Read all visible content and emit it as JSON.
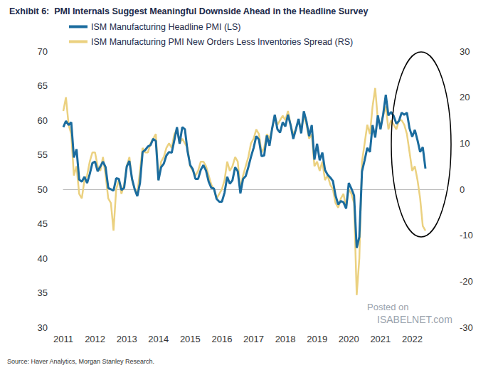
{
  "chart_data": {
    "type": "line",
    "title": "Exhibit 6:  PMI Internals Suggest Meaningful Downside Ahead in the Headline Survey",
    "source": "Source: Haver Analytics, Morgan Stanley Research.",
    "annotations": [
      "Posted on",
      "ISABELNET.com"
    ],
    "legend": "upper left",
    "grid": false,
    "xlim": [
      2011,
      2023
    ],
    "xticks": [
      2011,
      2012,
      2013,
      2014,
      2015,
      2016,
      2017,
      2018,
      2019,
      2020,
      2021,
      2022
    ],
    "ylim": [
      30,
      70
    ],
    "yticks": [
      30,
      35,
      40,
      45,
      50,
      55,
      60,
      65,
      70
    ],
    "y2lim": [
      -30,
      30
    ],
    "y2ticks": [
      -30,
      -20,
      -10,
      0,
      10,
      20,
      30
    ],
    "x": [
      2011,
      2011.083,
      2011.167,
      2011.25,
      2011.333,
      2011.417,
      2011.5,
      2011.583,
      2011.667,
      2011.75,
      2011.833,
      2011.917,
      2012,
      2012.083,
      2012.167,
      2012.25,
      2012.333,
      2012.417,
      2012.5,
      2012.583,
      2012.667,
      2012.75,
      2012.833,
      2012.917,
      2013,
      2013.083,
      2013.167,
      2013.25,
      2013.333,
      2013.417,
      2013.5,
      2013.583,
      2013.667,
      2013.75,
      2013.833,
      2013.917,
      2014,
      2014.083,
      2014.167,
      2014.25,
      2014.333,
      2014.417,
      2014.5,
      2014.583,
      2014.667,
      2014.75,
      2014.833,
      2014.917,
      2015,
      2015.083,
      2015.167,
      2015.25,
      2015.333,
      2015.417,
      2015.5,
      2015.583,
      2015.667,
      2015.75,
      2015.833,
      2015.917,
      2016,
      2016.083,
      2016.167,
      2016.25,
      2016.333,
      2016.417,
      2016.5,
      2016.583,
      2016.667,
      2016.75,
      2016.833,
      2016.917,
      2017,
      2017.083,
      2017.167,
      2017.25,
      2017.333,
      2017.417,
      2017.5,
      2017.583,
      2017.667,
      2017.75,
      2017.833,
      2017.917,
      2018,
      2018.083,
      2018.167,
      2018.25,
      2018.333,
      2018.417,
      2018.5,
      2018.583,
      2018.667,
      2018.75,
      2018.833,
      2018.917,
      2019,
      2019.083,
      2019.167,
      2019.25,
      2019.333,
      2019.417,
      2019.5,
      2019.583,
      2019.667,
      2019.75,
      2019.833,
      2019.917,
      2020,
      2020.083,
      2020.167,
      2020.25,
      2020.333,
      2020.417,
      2020.5,
      2020.583,
      2020.667,
      2020.75,
      2020.833,
      2020.917,
      2021,
      2021.083,
      2021.167,
      2021.25,
      2021.333,
      2021.417,
      2021.5,
      2021.583,
      2021.667,
      2021.75,
      2021.833,
      2021.917,
      2022,
      2022.083,
      2022.167,
      2022.25,
      2022.333,
      2022.417
    ],
    "series": [
      {
        "name": "ISM Manufacturing Headline PMI (LS)",
        "color": "#1b6c9e",
        "axis": "y",
        "values": [
          59.0,
          59.9,
          59.3,
          59.7,
          54.6,
          55.8,
          51.4,
          51.1,
          51.8,
          50.9,
          52.2,
          53.8,
          54.0,
          52.6,
          53.3,
          54.0,
          53.2,
          50.2,
          50.0,
          49.8,
          51.6,
          51.5,
          49.9,
          50.2,
          53.3,
          54.1,
          51.5,
          50.0,
          49.0,
          50.9,
          55.4,
          55.7,
          56.2,
          56.4,
          57.3,
          57.0,
          51.3,
          53.2,
          53.7,
          54.9,
          55.4,
          55.3,
          57.1,
          59.0,
          56.6,
          59.0,
          58.7,
          55.5,
          53.5,
          52.9,
          51.5,
          51.5,
          52.8,
          53.5,
          52.7,
          51.1,
          50.2,
          50.1,
          48.6,
          48.2,
          48.2,
          49.5,
          51.8,
          50.8,
          51.3,
          53.2,
          52.6,
          49.4,
          51.5,
          51.9,
          53.2,
          54.7,
          56.0,
          57.7,
          57.2,
          54.8,
          54.9,
          57.8,
          56.3,
          58.8,
          60.8,
          58.7,
          58.2,
          59.7,
          59.1,
          60.8,
          59.3,
          57.3,
          58.7,
          60.2,
          58.1,
          61.3,
          59.8,
          57.7,
          59.3,
          54.3,
          56.6,
          54.2,
          55.3,
          52.8,
          52.1,
          51.7,
          51.2,
          49.1,
          47.8,
          48.3,
          48.1,
          47.2,
          50.9,
          50.1,
          49.1,
          41.5,
          43.1,
          52.6,
          54.2,
          56.0,
          55.4,
          59.3,
          57.5,
          60.7,
          58.7,
          60.8,
          63.7,
          60.7,
          61.2,
          60.6,
          59.5,
          59.9,
          61.1,
          60.8,
          61.1,
          58.8,
          57.6,
          58.6,
          57.1,
          55.4,
          56.1,
          53.0
        ]
      },
      {
        "name": "ISM Manufacturing PMI New Orders Less Inventories Spread (RS)",
        "color": "#ebd180",
        "axis": "y2",
        "values": [
          17,
          20,
          14,
          12,
          3,
          5,
          -1,
          -2,
          2,
          3,
          6,
          8,
          8,
          5,
          4,
          7,
          3,
          -2,
          -3,
          -9,
          0,
          2,
          -1,
          1,
          5,
          7,
          2,
          0,
          -1,
          4,
          9,
          8,
          8,
          10,
          11,
          12,
          2,
          6,
          7,
          9,
          10,
          9,
          12,
          13,
          10,
          11,
          10,
          9,
          5,
          4,
          3,
          4,
          6,
          6,
          5,
          3,
          1,
          0,
          -2,
          -1,
          0,
          2,
          6,
          4,
          5,
          7,
          6,
          0,
          3,
          5,
          7,
          10,
          11,
          13,
          12,
          8,
          9,
          12,
          11,
          13,
          16,
          14,
          15,
          16,
          15,
          17,
          14,
          12,
          13,
          15,
          13,
          16,
          14,
          11,
          12,
          5,
          6,
          4,
          6,
          2,
          3,
          1,
          0,
          -3,
          -4,
          -2,
          -1,
          -4,
          0,
          -1,
          -3,
          -23,
          -15,
          6,
          10,
          14,
          12,
          18,
          22,
          15,
          14,
          16,
          18,
          13,
          15,
          14,
          13,
          15,
          15,
          14,
          12,
          8,
          4,
          5,
          2,
          -2,
          -8,
          -9
        ]
      }
    ]
  }
}
